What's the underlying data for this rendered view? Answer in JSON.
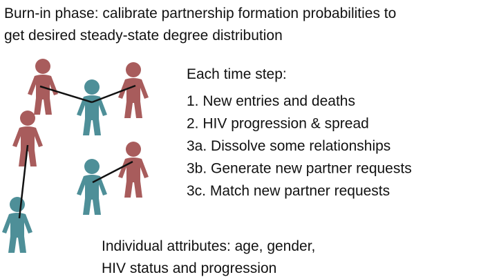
{
  "header": {
    "title_lines": [
      "Burn-in phase: calibrate partnership formation probabilities to",
      "get desired steady-state degree distribution"
    ]
  },
  "steps": {
    "heading": "Each time step:",
    "items": [
      "1. New entries and deaths",
      "2. HIV progression & spread",
      "3a. Dissolve some relationships",
      "3b. Generate new partner requests",
      "3c. Match new partner requests"
    ]
  },
  "footer": {
    "lines": [
      "Individual attributes: age, gender,",
      "HIV status and progression"
    ]
  }
}
